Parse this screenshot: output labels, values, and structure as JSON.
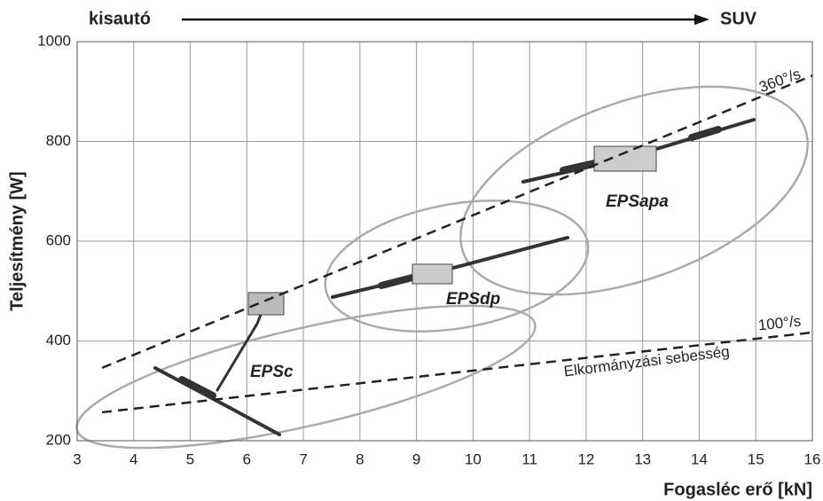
{
  "chart_data": {
    "type": "line",
    "top_left_label": "kisautó",
    "top_right_label": "SUV",
    "x_label": "Fogasléc erő [kN]",
    "y_label": "Teljesítmény [W]",
    "annotations": [
      "Elkormányzási sebesség",
      "EPSc",
      "EPSdp",
      "EPSapa"
    ],
    "series": [
      {
        "name": "360°/s",
        "color": "#222222",
        "x": [
          3.44,
          16
        ],
        "values": [
          346,
          932
        ]
      },
      {
        "name": "100°/s",
        "color": "#222222",
        "x": [
          3.44,
          16
        ],
        "values": [
          257,
          417
        ]
      }
    ],
    "xlim": [
      3,
      16
    ],
    "xticks": [
      3,
      4,
      5,
      6,
      7,
      8,
      9,
      10,
      11,
      12,
      13,
      14,
      15,
      16
    ],
    "ylim": [
      200,
      1000
    ],
    "yticks": [
      200,
      400,
      600,
      800,
      1000
    ],
    "grid": true,
    "dashed": true
  }
}
